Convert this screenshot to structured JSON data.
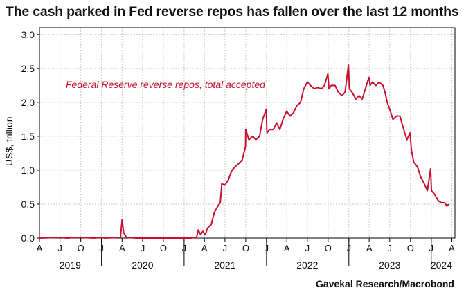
{
  "title": "The cash parked in Fed reverse repos has fallen over the last 12 months",
  "source": "Gavekal Research/Macrobond",
  "colors": {
    "series": "#c8102e",
    "grid": "#c9c9c9",
    "text": "#111111"
  },
  "chart_data": {
    "type": "line",
    "title": "The cash parked in Fed reverse repos has fallen over the last 12 months",
    "ylabel": "US$, trillion",
    "xlabel": "",
    "ylim": [
      0,
      3.1
    ],
    "xlim": [
      "2019-04-01",
      "2024-04-15"
    ],
    "yticks": [
      "0.0",
      "0.5",
      "1.0",
      "1.5",
      "2.0",
      "2.5",
      "3.0"
    ],
    "yticks_values": [
      0,
      0.5,
      1.0,
      1.5,
      2.0,
      2.5,
      3.0
    ],
    "month_ticks": [
      {
        "label": "A",
        "date": "2019-04-01"
      },
      {
        "label": "J",
        "date": "2019-07-01"
      },
      {
        "label": "O",
        "date": "2019-10-01"
      },
      {
        "label": "J",
        "date": "2020-01-01"
      },
      {
        "label": "A",
        "date": "2020-04-01"
      },
      {
        "label": "J",
        "date": "2020-07-01"
      },
      {
        "label": "O",
        "date": "2020-10-01"
      },
      {
        "label": "J",
        "date": "2021-01-01"
      },
      {
        "label": "A",
        "date": "2021-04-01"
      },
      {
        "label": "J",
        "date": "2021-07-01"
      },
      {
        "label": "O",
        "date": "2021-10-01"
      },
      {
        "label": "J",
        "date": "2022-01-01"
      },
      {
        "label": "A",
        "date": "2022-04-01"
      },
      {
        "label": "J",
        "date": "2022-07-01"
      },
      {
        "label": "O",
        "date": "2022-10-01"
      },
      {
        "label": "J",
        "date": "2023-01-01"
      },
      {
        "label": "A",
        "date": "2023-04-01"
      },
      {
        "label": "J",
        "date": "2023-07-01"
      },
      {
        "label": "O",
        "date": "2023-10-01"
      },
      {
        "label": "J",
        "date": "2024-01-01"
      },
      {
        "label": "A",
        "date": "2024-04-01"
      }
    ],
    "year_labels": [
      {
        "label": "2019",
        "date": "2019-08-15"
      },
      {
        "label": "2020",
        "date": "2020-07-01"
      },
      {
        "label": "2021",
        "date": "2021-07-01"
      },
      {
        "label": "2022",
        "date": "2022-07-01"
      },
      {
        "label": "2023",
        "date": "2023-07-01"
      },
      {
        "label": "2024",
        "date": "2024-02-15"
      }
    ],
    "grid": true,
    "legend": "top-left",
    "series": [
      {
        "name": "Federal Reserve reverse repos, total accepted",
        "color": "#c8102e",
        "points": [
          [
            "2019-04-01",
            0.0
          ],
          [
            "2019-07-01",
            0.01
          ],
          [
            "2019-08-01",
            0.0
          ],
          [
            "2019-09-15",
            0.01
          ],
          [
            "2019-12-01",
            0.0
          ],
          [
            "2020-01-01",
            0.01
          ],
          [
            "2020-01-15",
            0.0
          ],
          [
            "2020-03-25",
            0.01
          ],
          [
            "2020-04-01",
            0.27
          ],
          [
            "2020-04-08",
            0.08
          ],
          [
            "2020-04-20",
            0.01
          ],
          [
            "2020-06-01",
            0.0
          ],
          [
            "2020-10-01",
            0.0
          ],
          [
            "2021-02-01",
            0.0
          ],
          [
            "2021-02-25",
            0.01
          ],
          [
            "2021-03-05",
            0.12
          ],
          [
            "2021-03-15",
            0.05
          ],
          [
            "2021-03-25",
            0.1
          ],
          [
            "2021-04-05",
            0.05
          ],
          [
            "2021-04-15",
            0.15
          ],
          [
            "2021-05-01",
            0.2
          ],
          [
            "2021-05-15",
            0.38
          ],
          [
            "2021-06-01",
            0.48
          ],
          [
            "2021-06-10",
            0.52
          ],
          [
            "2021-06-17",
            0.8
          ],
          [
            "2021-06-30",
            0.78
          ],
          [
            "2021-07-15",
            0.85
          ],
          [
            "2021-08-01",
            1.0
          ],
          [
            "2021-08-15",
            1.05
          ],
          [
            "2021-09-01",
            1.1
          ],
          [
            "2021-09-15",
            1.15
          ],
          [
            "2021-09-30",
            1.35
          ],
          [
            "2021-10-01",
            1.6
          ],
          [
            "2021-10-15",
            1.45
          ],
          [
            "2021-11-01",
            1.5
          ],
          [
            "2021-11-15",
            1.45
          ],
          [
            "2021-12-01",
            1.5
          ],
          [
            "2021-12-15",
            1.75
          ],
          [
            "2021-12-31",
            1.9
          ],
          [
            "2022-01-03",
            1.55
          ],
          [
            "2022-01-15",
            1.6
          ],
          [
            "2022-02-01",
            1.6
          ],
          [
            "2022-02-15",
            1.7
          ],
          [
            "2022-03-01",
            1.6
          ],
          [
            "2022-03-15",
            1.75
          ],
          [
            "2022-03-31",
            1.87
          ],
          [
            "2022-04-15",
            1.8
          ],
          [
            "2022-05-01",
            1.85
          ],
          [
            "2022-05-15",
            1.95
          ],
          [
            "2022-06-01",
            2.0
          ],
          [
            "2022-06-15",
            2.2
          ],
          [
            "2022-07-01",
            2.3
          ],
          [
            "2022-07-15",
            2.25
          ],
          [
            "2022-08-01",
            2.2
          ],
          [
            "2022-08-15",
            2.22
          ],
          [
            "2022-09-01",
            2.2
          ],
          [
            "2022-09-15",
            2.25
          ],
          [
            "2022-09-30",
            2.42
          ],
          [
            "2022-10-05",
            2.2
          ],
          [
            "2022-10-15",
            2.25
          ],
          [
            "2022-11-01",
            2.25
          ],
          [
            "2022-11-15",
            2.15
          ],
          [
            "2022-12-01",
            2.1
          ],
          [
            "2022-12-15",
            2.15
          ],
          [
            "2022-12-30",
            2.55
          ],
          [
            "2023-01-03",
            2.2
          ],
          [
            "2023-01-15",
            2.15
          ],
          [
            "2023-02-01",
            2.05
          ],
          [
            "2023-02-15",
            2.1
          ],
          [
            "2023-03-01",
            2.05
          ],
          [
            "2023-03-15",
            2.2
          ],
          [
            "2023-03-31",
            2.37
          ],
          [
            "2023-04-05",
            2.25
          ],
          [
            "2023-04-15",
            2.3
          ],
          [
            "2023-05-01",
            2.25
          ],
          [
            "2023-05-15",
            2.3
          ],
          [
            "2023-06-01",
            2.25
          ],
          [
            "2023-06-10",
            2.15
          ],
          [
            "2023-06-20",
            2.0
          ],
          [
            "2023-07-01",
            1.9
          ],
          [
            "2023-07-15",
            1.75
          ],
          [
            "2023-08-01",
            1.8
          ],
          [
            "2023-08-15",
            1.8
          ],
          [
            "2023-09-01",
            1.6
          ],
          [
            "2023-09-15",
            1.45
          ],
          [
            "2023-09-29",
            1.55
          ],
          [
            "2023-10-05",
            1.3
          ],
          [
            "2023-10-15",
            1.12
          ],
          [
            "2023-11-01",
            1.05
          ],
          [
            "2023-11-15",
            0.9
          ],
          [
            "2023-12-01",
            0.8
          ],
          [
            "2023-12-15",
            0.7
          ],
          [
            "2023-12-29",
            1.02
          ],
          [
            "2024-01-02",
            0.7
          ],
          [
            "2024-01-15",
            0.65
          ],
          [
            "2024-02-01",
            0.55
          ],
          [
            "2024-02-15",
            0.52
          ],
          [
            "2024-03-01",
            0.52
          ],
          [
            "2024-03-10",
            0.47
          ],
          [
            "2024-03-18",
            0.5
          ]
        ]
      }
    ]
  }
}
